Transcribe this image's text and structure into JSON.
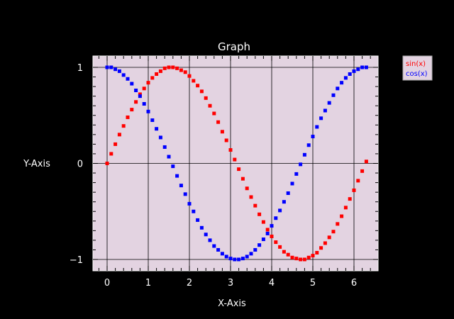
{
  "chart_data": {
    "type": "scatter",
    "title": "Graph",
    "xlabel": "X-Axis",
    "ylabel": "Y-Axis",
    "xlim": [
      -0.3,
      6.6
    ],
    "ylim": [
      -1.1,
      1.1
    ],
    "x_ticks": [
      0,
      1,
      2,
      3,
      4,
      5,
      6
    ],
    "x_tick_labels": [
      "0",
      "1",
      "2",
      "3",
      "4",
      "5",
      "6"
    ],
    "y_ticks": [
      1,
      0,
      -1
    ],
    "y_tick_labels": [
      "1",
      "0",
      "−1"
    ],
    "grid": true,
    "legend_position": "top-right, outside plot",
    "plot_background": "#e3d3e1",
    "page_background": "#000000",
    "series": [
      {
        "name": "sin(x)",
        "color": "#ff0000",
        "x": [
          0.0,
          0.1,
          0.2,
          0.3,
          0.4,
          0.5,
          0.6,
          0.7,
          0.8,
          0.9,
          1.0,
          1.1,
          1.2,
          1.3,
          1.4,
          1.5,
          1.6,
          1.7,
          1.8,
          1.9,
          2.0,
          2.1,
          2.2,
          2.3,
          2.4,
          2.5,
          2.6,
          2.7,
          2.8,
          2.9,
          3.0,
          3.1,
          3.2,
          3.3,
          3.4,
          3.5,
          3.6,
          3.7,
          3.8,
          3.9,
          4.0,
          4.1,
          4.2,
          4.3,
          4.4,
          4.5,
          4.6,
          4.7,
          4.8,
          4.9,
          5.0,
          5.1,
          5.2,
          5.3,
          5.4,
          5.5,
          5.6,
          5.7,
          5.8,
          5.9,
          6.0,
          6.1,
          6.2,
          6.3
        ],
        "y": [
          0.0,
          0.1,
          0.2,
          0.3,
          0.39,
          0.48,
          0.56,
          0.64,
          0.72,
          0.78,
          0.84,
          0.89,
          0.93,
          0.96,
          0.99,
          1.0,
          1.0,
          0.99,
          0.97,
          0.95,
          0.91,
          0.86,
          0.81,
          0.75,
          0.68,
          0.6,
          0.52,
          0.43,
          0.33,
          0.24,
          0.14,
          0.04,
          -0.06,
          -0.16,
          -0.26,
          -0.35,
          -0.44,
          -0.53,
          -0.61,
          -0.69,
          -0.76,
          -0.82,
          -0.87,
          -0.92,
          -0.95,
          -0.98,
          -0.99,
          -1.0,
          -1.0,
          -0.98,
          -0.96,
          -0.93,
          -0.88,
          -0.83,
          -0.77,
          -0.71,
          -0.63,
          -0.55,
          -0.46,
          -0.37,
          -0.28,
          -0.18,
          -0.08,
          0.02
        ]
      },
      {
        "name": "cos(x)",
        "color": "#0000ff",
        "x": [
          0.0,
          0.1,
          0.2,
          0.3,
          0.4,
          0.5,
          0.6,
          0.7,
          0.8,
          0.9,
          1.0,
          1.1,
          1.2,
          1.3,
          1.4,
          1.5,
          1.6,
          1.7,
          1.8,
          1.9,
          2.0,
          2.1,
          2.2,
          2.3,
          2.4,
          2.5,
          2.6,
          2.7,
          2.8,
          2.9,
          3.0,
          3.1,
          3.2,
          3.3,
          3.4,
          3.5,
          3.6,
          3.7,
          3.8,
          3.9,
          4.0,
          4.1,
          4.2,
          4.3,
          4.4,
          4.5,
          4.6,
          4.7,
          4.8,
          4.9,
          5.0,
          5.1,
          5.2,
          5.3,
          5.4,
          5.5,
          5.6,
          5.7,
          5.8,
          5.9,
          6.0,
          6.1,
          6.2,
          6.3
        ],
        "y": [
          1.0,
          1.0,
          0.98,
          0.96,
          0.92,
          0.88,
          0.83,
          0.76,
          0.7,
          0.62,
          0.54,
          0.45,
          0.36,
          0.27,
          0.17,
          0.07,
          -0.03,
          -0.13,
          -0.23,
          -0.32,
          -0.42,
          -0.5,
          -0.59,
          -0.67,
          -0.74,
          -0.8,
          -0.86,
          -0.9,
          -0.94,
          -0.97,
          -0.99,
          -1.0,
          -1.0,
          -0.99,
          -0.97,
          -0.94,
          -0.9,
          -0.85,
          -0.79,
          -0.73,
          -0.65,
          -0.57,
          -0.49,
          -0.4,
          -0.31,
          -0.21,
          -0.11,
          -0.01,
          0.09,
          0.19,
          0.28,
          0.38,
          0.47,
          0.55,
          0.63,
          0.71,
          0.78,
          0.84,
          0.89,
          0.93,
          0.96,
          0.98,
          1.0,
          1.0
        ]
      }
    ]
  }
}
